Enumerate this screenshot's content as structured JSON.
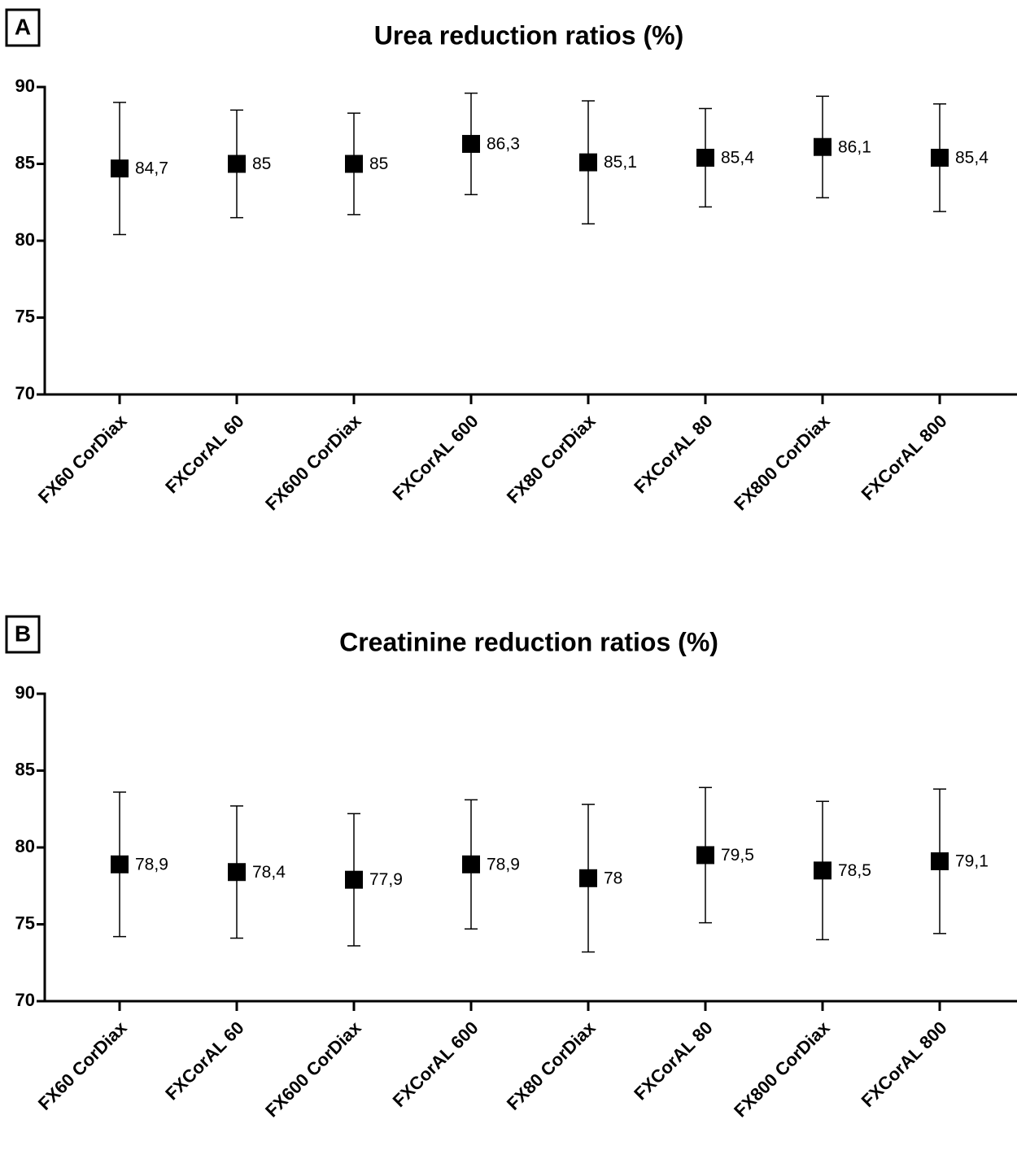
{
  "chart_data": [
    {
      "type": "errorbar",
      "panel": "A",
      "title": "Urea reduction ratios (%)",
      "categories": [
        "FX60 CorDiax",
        "FXCorAL 60",
        "FX600 CorDiax",
        "FXCorAL 600",
        "FX80 CorDiax",
        "FXCorAL 80",
        "FX800 CorDiax",
        "FXCorAL 800"
      ],
      "values": [
        84.7,
        85,
        85,
        86.3,
        85.1,
        85.4,
        86.1,
        85.4
      ],
      "value_labels": [
        "84,7",
        "85",
        "85",
        "86,3",
        "85,1",
        "85,4",
        "86,1",
        "85,4"
      ],
      "errors": [
        4.3,
        3.5,
        3.3,
        3.3,
        4.0,
        3.2,
        3.3,
        3.5
      ],
      "color": "#000000",
      "ylim": [
        70,
        90
      ],
      "yticks": [
        70,
        75,
        80,
        85,
        90
      ]
    },
    {
      "type": "errorbar",
      "panel": "B",
      "title": "Creatinine reduction ratios (%)",
      "categories": [
        "FX60 CorDiax",
        "FXCorAL 60",
        "FX600 CorDiax",
        "FXCorAL 600",
        "FX80 CorDiax",
        "FXCorAL 80",
        "FX800 CorDiax",
        "FXCorAL 800"
      ],
      "values": [
        78.9,
        78.4,
        77.9,
        78.9,
        78,
        79.5,
        78.5,
        79.1
      ],
      "value_labels": [
        "78,9",
        "78,4",
        "77,9",
        "78,9",
        "78",
        "79,5",
        "78,5",
        "79,1"
      ],
      "errors": [
        4.7,
        4.3,
        4.3,
        4.2,
        4.8,
        4.4,
        4.5,
        4.7
      ],
      "color": "#000000",
      "ylim": [
        70,
        90
      ],
      "yticks": [
        70,
        75,
        80,
        85,
        90
      ]
    }
  ]
}
